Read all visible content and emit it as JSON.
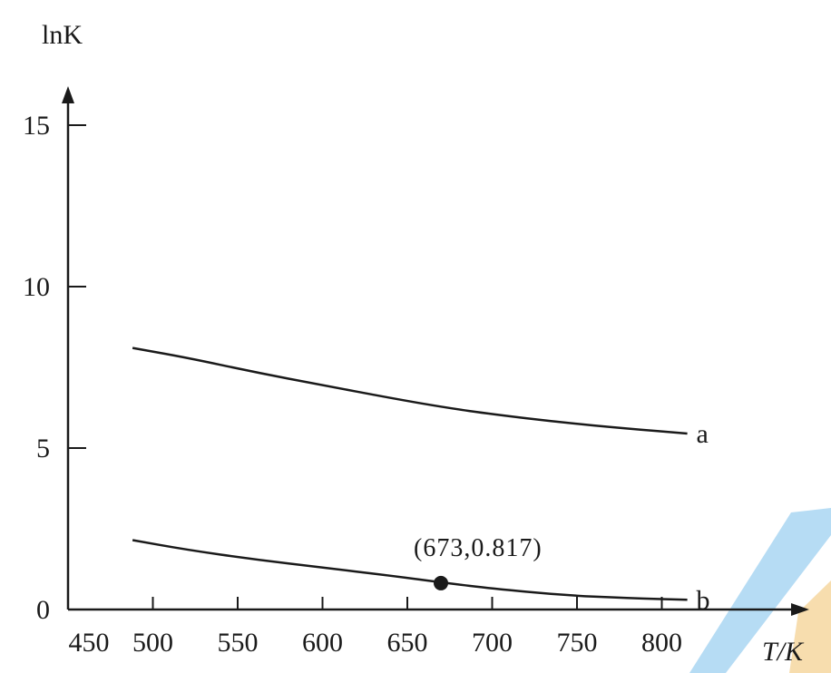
{
  "chart_data": {
    "type": "line",
    "title": "",
    "xlabel": "T/K",
    "ylabel": "lnK",
    "xlim": [
      450,
      850
    ],
    "ylim": [
      0,
      18
    ],
    "x_ticks": [
      "450",
      "500",
      "550",
      "600",
      "650",
      "700",
      "750",
      "800"
    ],
    "y_ticks": [
      "0",
      "5",
      "10",
      "15"
    ],
    "grid": false,
    "series": [
      {
        "name": "a",
        "x": [
          488,
          520,
          560,
          600,
          640,
          673,
          700,
          740,
          780,
          815
        ],
        "y": [
          8.1,
          7.8,
          7.35,
          6.95,
          6.55,
          6.25,
          6.05,
          5.8,
          5.6,
          5.45
        ]
      },
      {
        "name": "b",
        "x": [
          488,
          520,
          560,
          600,
          640,
          673,
          700,
          740,
          780,
          815
        ],
        "y": [
          2.15,
          1.85,
          1.55,
          1.3,
          1.05,
          0.817,
          0.65,
          0.45,
          0.35,
          0.3
        ]
      }
    ],
    "annotations": [
      {
        "text": "(673,0.817)",
        "x": 673,
        "y": 0.817
      }
    ]
  }
}
